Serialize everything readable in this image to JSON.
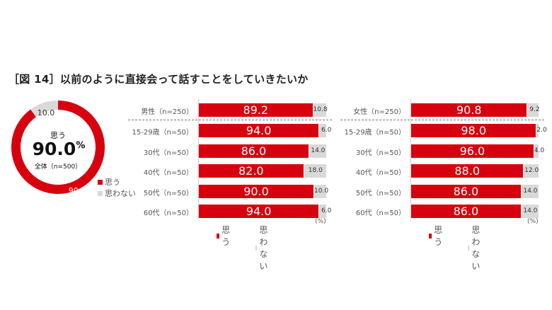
{
  "title": "［図 14］以前のように直接会って話すことをしていきたいか",
  "colors": {
    "yes": "#d7000f",
    "no": "#d9d9d9"
  },
  "chart_data": [
    {
      "type": "pie",
      "subtype": "donut",
      "center_label": "思う",
      "center_value": "90.0",
      "center_unit": "%",
      "center_sub": "全体（n=500）",
      "categories": [
        "思う",
        "思わない"
      ],
      "values": [
        90.0,
        10.0
      ],
      "value_labels": [
        "90.0",
        "10.0"
      ],
      "legend": [
        "思う",
        "思わない"
      ],
      "legend_position": "right"
    },
    {
      "type": "bar",
      "orientation": "horizontal",
      "stacked": true,
      "unit": "(%)",
      "categories": [
        "男性（n=250）",
        "15-29歳（n=50）",
        "30代（n=50）",
        "40代（n=50）",
        "50代（n=50）",
        "60代（n=50）"
      ],
      "series": [
        {
          "name": "思う",
          "values": [
            89.2,
            94.0,
            86.0,
            82.0,
            90.0,
            94.0
          ]
        },
        {
          "name": "思わない",
          "values": [
            10.8,
            6.0,
            14.0,
            18.0,
            10.0,
            6.0
          ]
        }
      ],
      "labels_yes": [
        "89.2",
        "94.0",
        "86.0",
        "82.0",
        "90.0",
        "94.0"
      ],
      "labels_no": [
        "10.8",
        "6.0",
        "14.0",
        "18.0",
        "10.0",
        "6.0"
      ],
      "xlim": [
        0,
        100
      ],
      "legend_position": "bottom"
    },
    {
      "type": "bar",
      "orientation": "horizontal",
      "stacked": true,
      "unit": "(%)",
      "categories": [
        "女性（n=250）",
        "15-29歳（n=50）",
        "30代（n=50）",
        "40代（n=50）",
        "50代（n=50）",
        "60代（n=50）"
      ],
      "series": [
        {
          "name": "思う",
          "values": [
            90.8,
            98.0,
            96.0,
            88.0,
            86.0,
            86.0
          ]
        },
        {
          "name": "思わない",
          "values": [
            9.2,
            2.0,
            4.0,
            12.0,
            14.0,
            14.0
          ]
        }
      ],
      "labels_yes": [
        "90.8",
        "98.0",
        "96.0",
        "88.0",
        "86.0",
        "86.0"
      ],
      "labels_no": [
        "9.2",
        "2.0",
        "4.0",
        "12.0",
        "14.0",
        "14.0"
      ],
      "xlim": [
        0,
        100
      ],
      "legend_position": "bottom"
    }
  ]
}
